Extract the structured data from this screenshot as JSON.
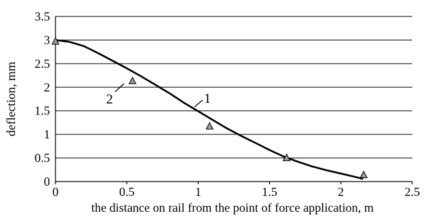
{
  "chart_data": {
    "type": "line",
    "xlabel": "the distance on rail from the point of force application, m",
    "ylabel": "deflection, mm",
    "xlim": [
      0,
      2.5
    ],
    "ylim": [
      0,
      3.5
    ],
    "x_ticks": [
      "0",
      "0.5",
      "1",
      "1.5",
      "2",
      "2.5"
    ],
    "y_ticks": [
      "0",
      "0.5",
      "1",
      "1.5",
      "2",
      "2.5",
      "3",
      "3.5"
    ],
    "grid": "horizontal",
    "series": [
      {
        "label": "1",
        "style": "line",
        "color": "#000000",
        "x": [
          0,
          0.1,
          0.2,
          0.3,
          0.4,
          0.5,
          0.6,
          0.7,
          0.8,
          0.9,
          1.0,
          1.1,
          1.2,
          1.3,
          1.4,
          1.5,
          1.6,
          1.7,
          1.8,
          1.9,
          2.0,
          2.1,
          2.15
        ],
        "y": [
          3.0,
          2.96,
          2.87,
          2.72,
          2.56,
          2.4,
          2.23,
          2.05,
          1.87,
          1.67,
          1.49,
          1.31,
          1.13,
          0.97,
          0.82,
          0.67,
          0.53,
          0.42,
          0.32,
          0.24,
          0.17,
          0.1,
          0.06
        ]
      },
      {
        "label": "2",
        "style": "markers",
        "marker": "triangle",
        "color": "#9a9a9a",
        "x": [
          0,
          0.54,
          1.08,
          1.62,
          2.16
        ],
        "y": [
          2.97,
          2.13,
          1.17,
          0.5,
          0.14
        ]
      }
    ],
    "annotations": [
      {
        "text": "1",
        "target_series": "1"
      },
      {
        "text": "2",
        "target_series": "2"
      }
    ]
  }
}
